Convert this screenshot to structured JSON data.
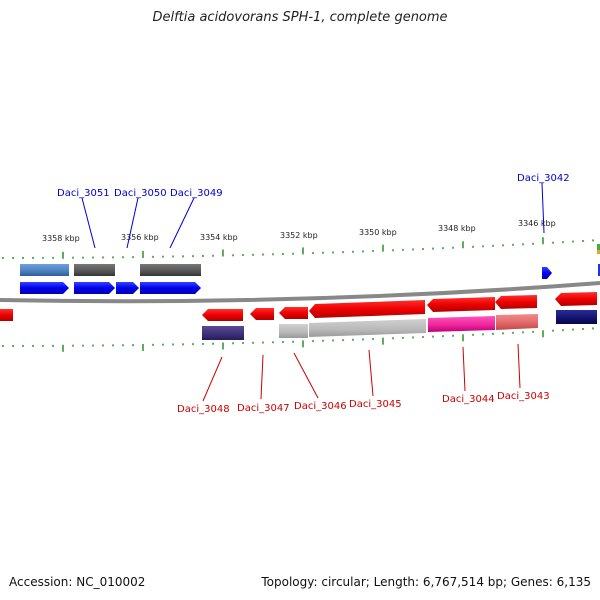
{
  "title": "Delftia acidovorans SPH-1, complete genome",
  "footer": {
    "accession": "Accession: NC_010002",
    "summary": "Topology: circular; Length: 6,767,514 bp; Genes: 6,135"
  },
  "colors": {
    "label_top": "#0000cc",
    "label_bottom": "#cc0000",
    "backbone": "#888888",
    "ticks": "#1a8a1a"
  },
  "scale_labels": [
    "3358 kbp",
    "3356 kbp",
    "3354 kbp",
    "3352 kbp",
    "3350 kbp",
    "3348 kbp",
    "3346 kbp"
  ],
  "genes_top": [
    "Daci_3051",
    "Daci_3050",
    "Daci_3049",
    "Daci_3042"
  ],
  "genes_bottom": [
    "Daci_3048",
    "Daci_3047",
    "Daci_3046",
    "Daci_3045",
    "Daci_3044",
    "Daci_3043"
  ]
}
